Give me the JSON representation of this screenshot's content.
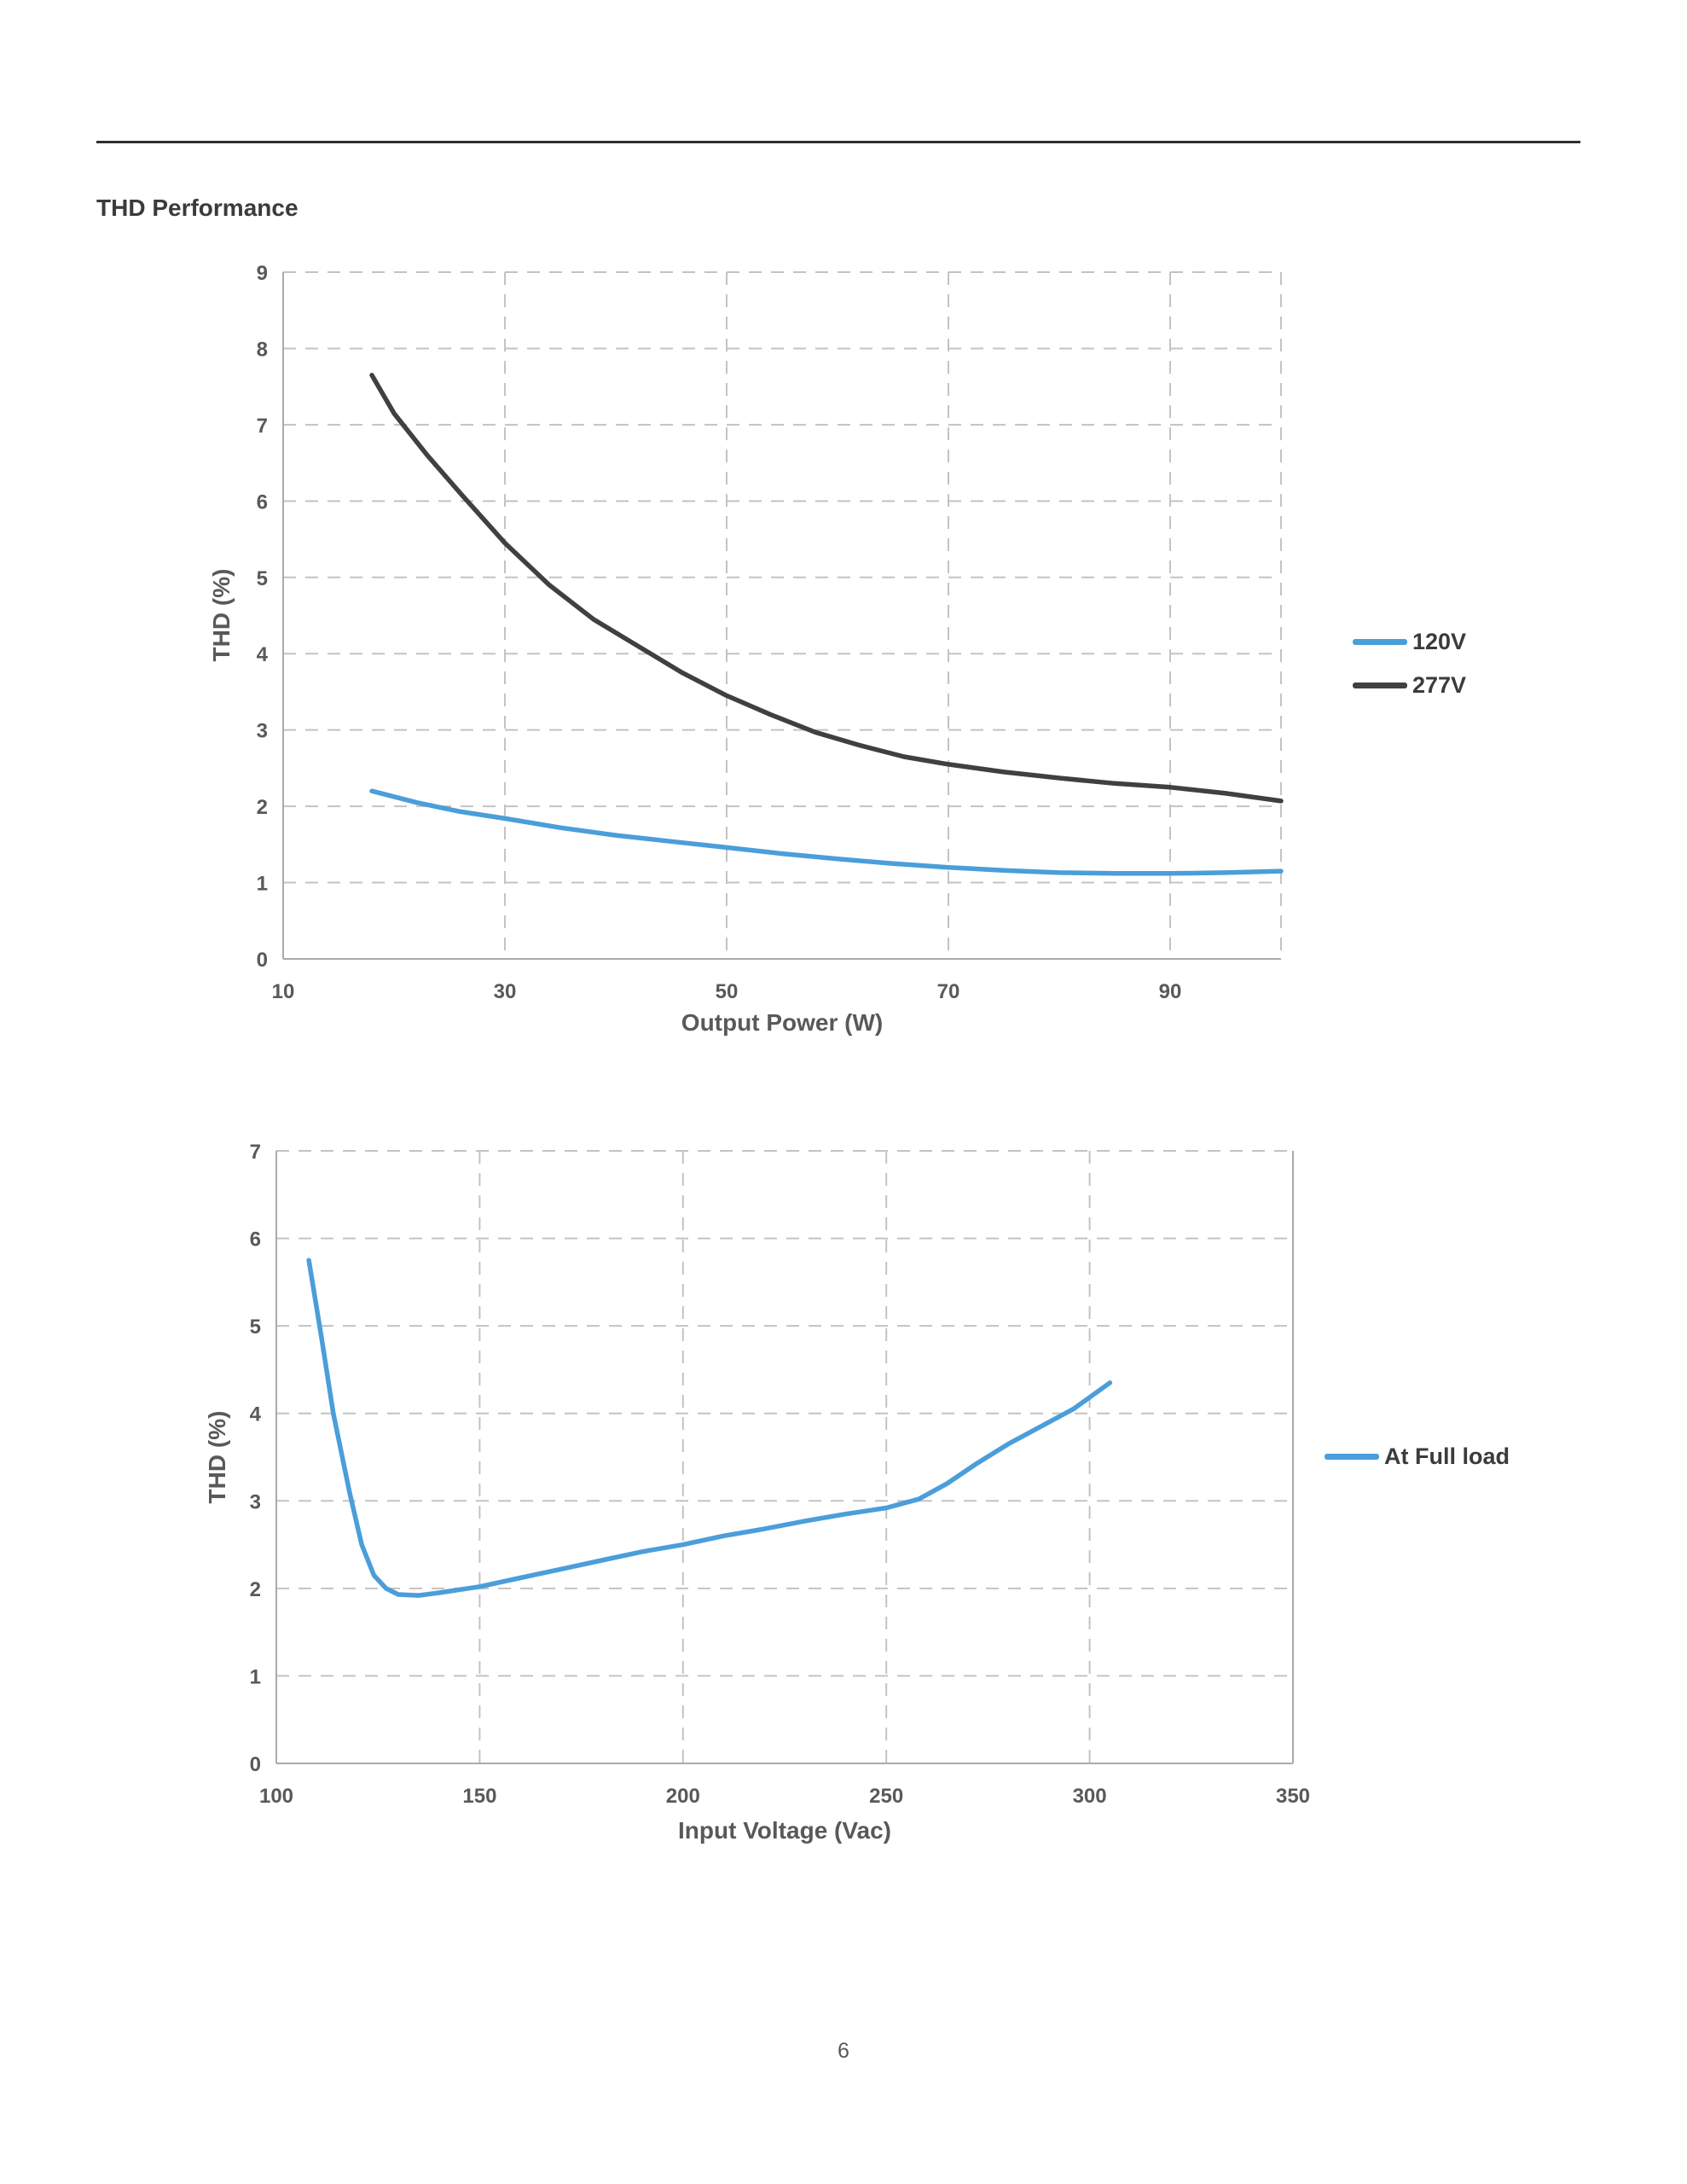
{
  "page": {
    "title": "THD Performance",
    "page_number": "6"
  },
  "colors": {
    "accent_blue": "#4A9EDA",
    "dark_gray": "#404040",
    "grid": "#C3C3C3",
    "axis": "#ABABAB",
    "label": "#595959"
  },
  "chart_data": [
    {
      "type": "line",
      "title": "",
      "xlabel": "Output Power (W)",
      "ylabel": "THD (%)",
      "xlim": [
        10,
        100
      ],
      "ylim": [
        0,
        9
      ],
      "xticks": [
        10,
        30,
        50,
        70,
        90
      ],
      "xgrid": [
        30,
        50,
        70,
        90,
        100
      ],
      "yticks": [
        0,
        1,
        2,
        3,
        4,
        5,
        6,
        7,
        8,
        9
      ],
      "grid": true,
      "legend_position": "right",
      "series": [
        {
          "name": "120V",
          "color": "#4A9EDA",
          "points": [
            [
              18,
              2.2
            ],
            [
              22,
              2.05
            ],
            [
              26,
              1.93
            ],
            [
              30,
              1.84
            ],
            [
              35,
              1.72
            ],
            [
              40,
              1.62
            ],
            [
              45,
              1.54
            ],
            [
              50,
              1.46
            ],
            [
              55,
              1.38
            ],
            [
              60,
              1.31
            ],
            [
              65,
              1.25
            ],
            [
              70,
              1.2
            ],
            [
              75,
              1.16
            ],
            [
              80,
              1.13
            ],
            [
              85,
              1.12
            ],
            [
              90,
              1.12
            ],
            [
              95,
              1.13
            ],
            [
              100,
              1.15
            ]
          ]
        },
        {
          "name": "277V",
          "color": "#404040",
          "points": [
            [
              18,
              7.65
            ],
            [
              20,
              7.15
            ],
            [
              23,
              6.6
            ],
            [
              26,
              6.1
            ],
            [
              30,
              5.45
            ],
            [
              34,
              4.9
            ],
            [
              38,
              4.45
            ],
            [
              42,
              4.1
            ],
            [
              46,
              3.75
            ],
            [
              50,
              3.45
            ],
            [
              54,
              3.2
            ],
            [
              58,
              2.97
            ],
            [
              62,
              2.8
            ],
            [
              66,
              2.65
            ],
            [
              70,
              2.55
            ],
            [
              75,
              2.45
            ],
            [
              80,
              2.37
            ],
            [
              85,
              2.3
            ],
            [
              90,
              2.25
            ],
            [
              95,
              2.17
            ],
            [
              100,
              2.07
            ]
          ]
        }
      ]
    },
    {
      "type": "line",
      "title": "",
      "xlabel": "Input Voltage (Vac)",
      "ylabel": "THD (%)",
      "xlim": [
        100,
        350
      ],
      "ylim": [
        0,
        7
      ],
      "xticks": [
        100,
        150,
        200,
        250,
        300,
        350
      ],
      "xgrid": [
        150,
        200,
        250,
        300,
        350
      ],
      "yticks": [
        0,
        1,
        2,
        3,
        4,
        5,
        6,
        7
      ],
      "grid": true,
      "right_border": true,
      "legend_position": "right",
      "series": [
        {
          "name": "At Full load",
          "color": "#4A9EDA",
          "points": [
            [
              108,
              5.75
            ],
            [
              111,
              4.9
            ],
            [
              114,
              4.0
            ],
            [
              118,
              3.1
            ],
            [
              121,
              2.5
            ],
            [
              124,
              2.15
            ],
            [
              127,
              2.0
            ],
            [
              130,
              1.93
            ],
            [
              135,
              1.92
            ],
            [
              140,
              1.95
            ],
            [
              150,
              2.02
            ],
            [
              160,
              2.12
            ],
            [
              170,
              2.22
            ],
            [
              180,
              2.32
            ],
            [
              190,
              2.42
            ],
            [
              200,
              2.5
            ],
            [
              210,
              2.6
            ],
            [
              220,
              2.68
            ],
            [
              230,
              2.77
            ],
            [
              240,
              2.85
            ],
            [
              250,
              2.92
            ],
            [
              258,
              3.02
            ],
            [
              265,
              3.2
            ],
            [
              272,
              3.42
            ],
            [
              280,
              3.65
            ],
            [
              288,
              3.85
            ],
            [
              296,
              4.05
            ],
            [
              305,
              4.35
            ]
          ]
        }
      ]
    }
  ]
}
